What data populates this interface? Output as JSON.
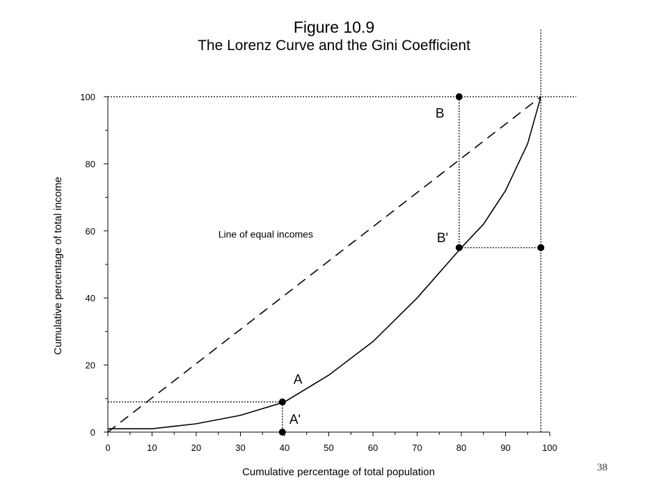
{
  "page_number": "38",
  "chart_data": {
    "type": "line",
    "title": "Figure 10.9",
    "subtitle": "The Lorenz Curve and the Gini Coefficient",
    "xlabel": "Cumulative percentage of total population",
    "ylabel": "Cumulative percentage of total income",
    "xlim": [
      0,
      100
    ],
    "ylim": [
      0,
      100
    ],
    "x_ticks": [
      0,
      10,
      20,
      30,
      40,
      50,
      60,
      70,
      80,
      90,
      100
    ],
    "y_ticks": [
      0,
      20,
      40,
      60,
      80,
      100
    ],
    "grid": false,
    "legend": "none",
    "series": [
      {
        "name": "Line of equal incomes",
        "style": "dashed",
        "x": [
          0,
          98
        ],
        "y": [
          0,
          100
        ]
      },
      {
        "name": "",
        "style": "solid",
        "x": [
          0,
          10,
          20,
          30,
          40,
          50,
          60,
          70,
          80,
          85,
          90,
          95,
          98
        ],
        "y": [
          1,
          1,
          2.5,
          5,
          9,
          17,
          27,
          40,
          55,
          62,
          72,
          86,
          100
        ]
      }
    ],
    "points": [
      {
        "label": "A",
        "x": 39.5,
        "y": 9
      },
      {
        "label": "A'",
        "x": 39.5,
        "y": 0
      },
      {
        "label": "B",
        "x": 79.5,
        "y": 100
      },
      {
        "label": "B'",
        "x": 79.5,
        "y": 55
      },
      {
        "label": "",
        "x": 98,
        "y": 55
      }
    ],
    "reference_lines": [
      {
        "x1": 0,
        "y1": 9,
        "x2": 39.5,
        "y2": 9
      },
      {
        "x1": 39.5,
        "y1": 9,
        "x2": 39.5,
        "y2": 0
      },
      {
        "x1": 79.5,
        "y1": 100,
        "x2": 79.5,
        "y2": 55
      },
      {
        "x1": 79.5,
        "y1": 55,
        "x2": 98,
        "y2": 55
      },
      {
        "x1": 0,
        "y1": 100,
        "x2": 106,
        "y2": 100
      },
      {
        "x1": 98,
        "y1": 120,
        "x2": 98,
        "y2": 0
      }
    ],
    "annotations": [
      {
        "text": "Line of equal incomes",
        "x": 25,
        "y": 59
      }
    ]
  }
}
